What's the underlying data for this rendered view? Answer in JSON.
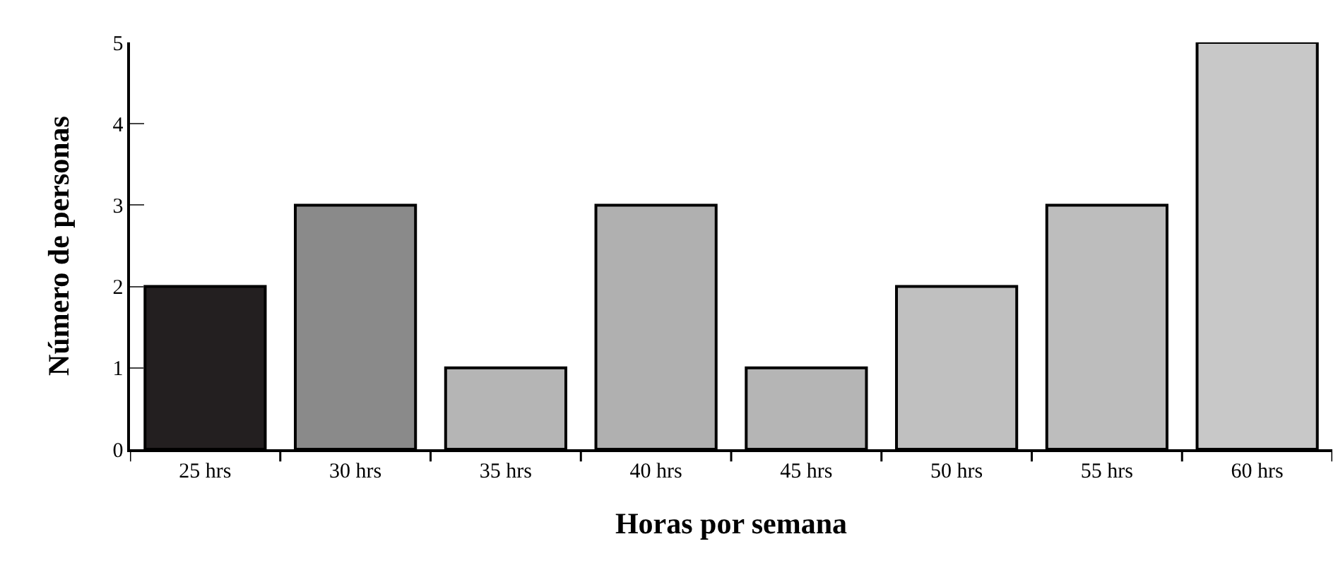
{
  "chart_data": {
    "type": "bar",
    "xlabel": "Horas por semana",
    "ylabel": "Número de personas",
    "categories": [
      "25 hrs",
      "30 hrs",
      "35 hrs",
      "40 hrs",
      "45 hrs",
      "50 hrs",
      "55 hrs",
      "60 hrs"
    ],
    "values": [
      2,
      3,
      1,
      3,
      1,
      2,
      3,
      5
    ],
    "colors": [
      "#231f20",
      "#8a8a8a",
      "#b5b5b5",
      "#b0b0b0",
      "#b5b5b5",
      "#c0c0c0",
      "#bdbdbd",
      "#c8c8c8"
    ],
    "ylim": [
      0,
      5
    ],
    "yticks": [
      0,
      1,
      2,
      3,
      4,
      5
    ]
  }
}
